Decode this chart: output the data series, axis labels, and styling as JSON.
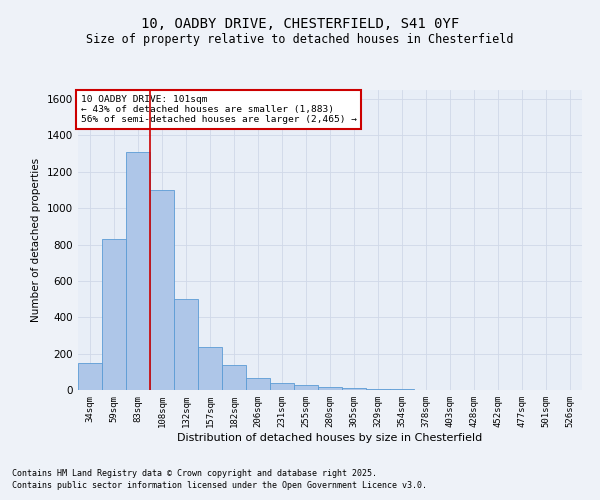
{
  "title_line1": "10, OADBY DRIVE, CHESTERFIELD, S41 0YF",
  "title_line2": "Size of property relative to detached houses in Chesterfield",
  "xlabel": "Distribution of detached houses by size in Chesterfield",
  "ylabel": "Number of detached properties",
  "categories": [
    "34sqm",
    "59sqm",
    "83sqm",
    "108sqm",
    "132sqm",
    "157sqm",
    "182sqm",
    "206sqm",
    "231sqm",
    "255sqm",
    "280sqm",
    "305sqm",
    "329sqm",
    "354sqm",
    "378sqm",
    "403sqm",
    "428sqm",
    "452sqm",
    "477sqm",
    "501sqm",
    "526sqm"
  ],
  "values": [
    150,
    830,
    1310,
    1100,
    500,
    235,
    135,
    65,
    38,
    25,
    15,
    10,
    5,
    3,
    2,
    2,
    1,
    1,
    0,
    0,
    0
  ],
  "bar_color": "#aec6e8",
  "bar_edge_color": "#5b9bd5",
  "grid_color": "#d0d8e8",
  "bg_color": "#e8eef7",
  "fig_bg_color": "#eef2f8",
  "red_line_x": 2.5,
  "annotation_title": "10 OADBY DRIVE: 101sqm",
  "annotation_line2": "← 43% of detached houses are smaller (1,883)",
  "annotation_line3": "56% of semi-detached houses are larger (2,465) →",
  "annotation_box_color": "#ffffff",
  "annotation_border_color": "#cc0000",
  "red_line_color": "#cc0000",
  "ylim": [
    0,
    1650
  ],
  "footer_line1": "Contains HM Land Registry data © Crown copyright and database right 2025.",
  "footer_line2": "Contains public sector information licensed under the Open Government Licence v3.0."
}
